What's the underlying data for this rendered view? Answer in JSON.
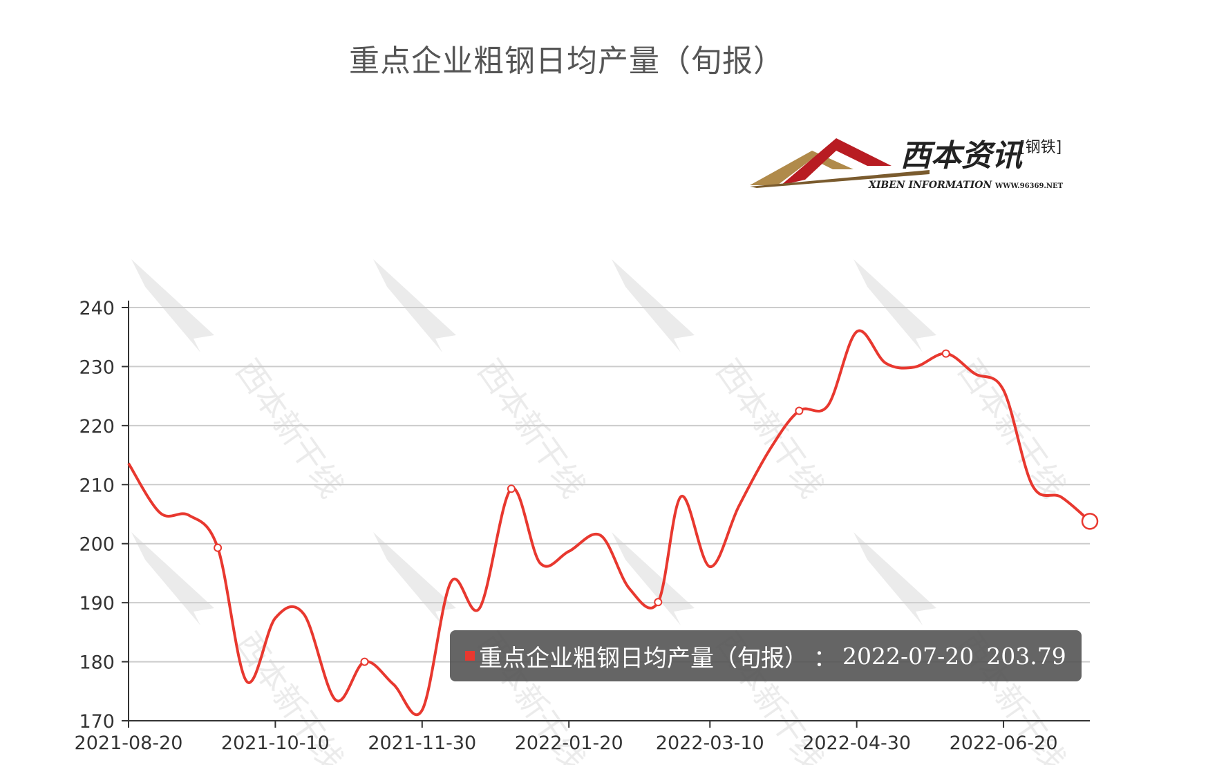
{
  "title": "重点企业粗钢日均产量（旬报）",
  "logo": {
    "brand": "西本资讯",
    "sub": "[钢铁]",
    "english": "XIBEN INFORMATION",
    "url": "WWW.96369.NET",
    "watermark": "西本新干线"
  },
  "colors": {
    "line": "#e8382f",
    "grid": "#cccccc",
    "axis": "#333333"
  },
  "tooltip": {
    "name": "重点企业粗钢日均产量（旬报）",
    "separator": "：",
    "date": "2022-07-20",
    "value": "203.79"
  },
  "chart_data": {
    "type": "line",
    "title": "重点企业粗钢日均产量（旬报）",
    "xlabel": "",
    "ylabel": "",
    "ylim": [
      170,
      240
    ],
    "yticks": [
      "170",
      "180",
      "190",
      "200",
      "210",
      "220",
      "230",
      "240"
    ],
    "xticks": [
      "2021-08-20",
      "2021-10-10",
      "2021-11-30",
      "2022-01-20",
      "2022-03-10",
      "2022-04-30",
      "2022-06-20"
    ],
    "grid": true,
    "legend": "none",
    "x": [
      "2021-08-20",
      "2021-08-31",
      "2021-09-10",
      "2021-09-20",
      "2021-09-30",
      "2021-10-10",
      "2021-10-20",
      "2021-10-31",
      "2021-11-10",
      "2021-11-20",
      "2021-11-30",
      "2021-12-10",
      "2021-12-20",
      "2021-12-31",
      "2022-01-10",
      "2022-01-20",
      "2022-01-31",
      "2022-02-10",
      "2022-02-20",
      "2022-02-28",
      "2022-03-10",
      "2022-03-20",
      "2022-03-31",
      "2022-04-10",
      "2022-04-20",
      "2022-04-30",
      "2022-05-10",
      "2022-05-20",
      "2022-05-31",
      "2022-06-10",
      "2022-06-20",
      "2022-06-30",
      "2022-07-10",
      "2022-07-20"
    ],
    "series": [
      {
        "values": [
          213.6,
          205.2,
          204.8,
          199.3,
          176.7,
          187.4,
          188.0,
          173.5,
          180.0,
          176.2,
          171.8,
          193.5,
          189.1,
          209.3,
          196.7,
          198.7,
          201.4,
          192.4,
          190.1,
          208.0,
          196.1,
          206.3,
          216.1,
          222.5,
          223.4,
          235.9,
          230.6,
          229.9,
          232.2,
          228.8,
          226.0,
          209.9,
          207.9,
          203.79
        ]
      }
    ]
  }
}
